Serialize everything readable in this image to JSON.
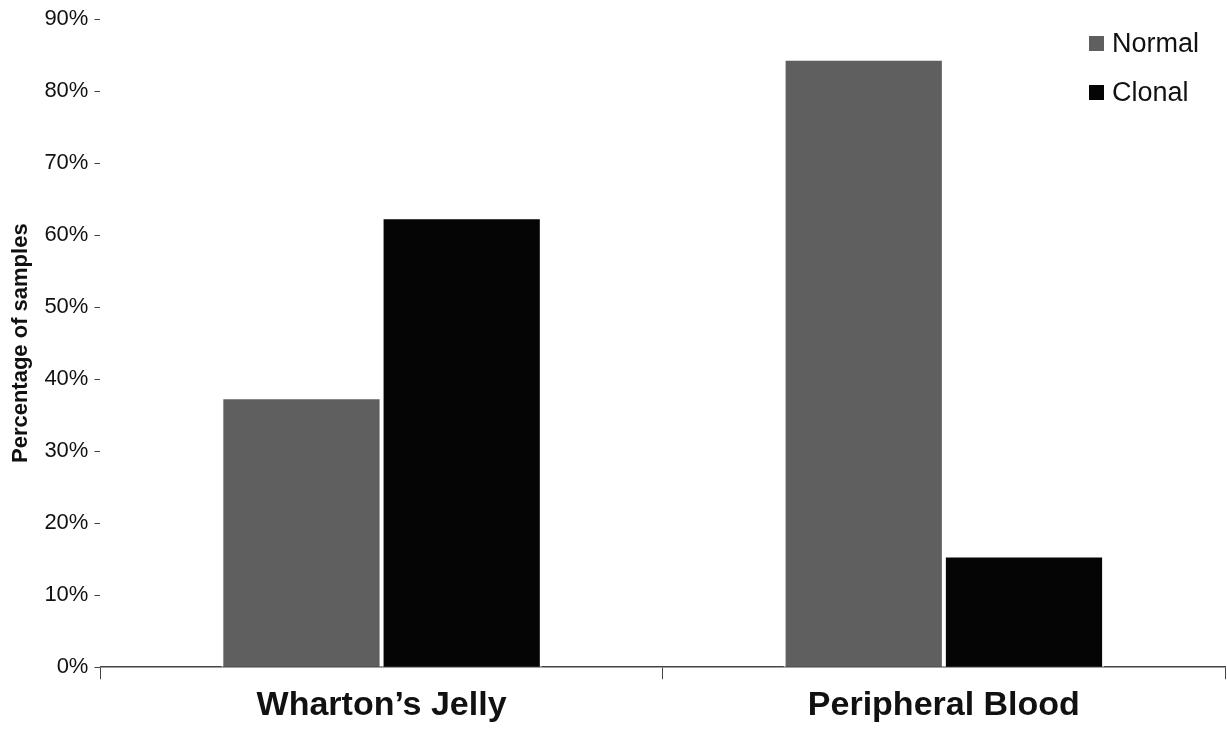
{
  "chart_data": {
    "type": "bar",
    "ylabel": "Percentage of samples",
    "categories": [
      "Wharton’s Jelly",
      "Peripheral Blood"
    ],
    "series": [
      {
        "name": "Normal",
        "color": "#5f5f5f",
        "values": [
          37.5,
          84.5
        ]
      },
      {
        "name": "Clonal",
        "color": "#050505",
        "values": [
          62.5,
          15.5
        ]
      }
    ],
    "ylim": [
      0,
      90
    ],
    "yticks": [
      {
        "value": 0,
        "label": "0%"
      },
      {
        "value": 10,
        "label": "10%"
      },
      {
        "value": 20,
        "label": "20%"
      },
      {
        "value": 30,
        "label": "30%"
      },
      {
        "value": 40,
        "label": "40%"
      },
      {
        "value": 50,
        "label": "50%"
      },
      {
        "value": 60,
        "label": "60%"
      },
      {
        "value": 70,
        "label": "70%"
      },
      {
        "value": 80,
        "label": "80%"
      },
      {
        "value": 90,
        "label": "90%"
      }
    ],
    "grid": false,
    "legend": "top right"
  }
}
